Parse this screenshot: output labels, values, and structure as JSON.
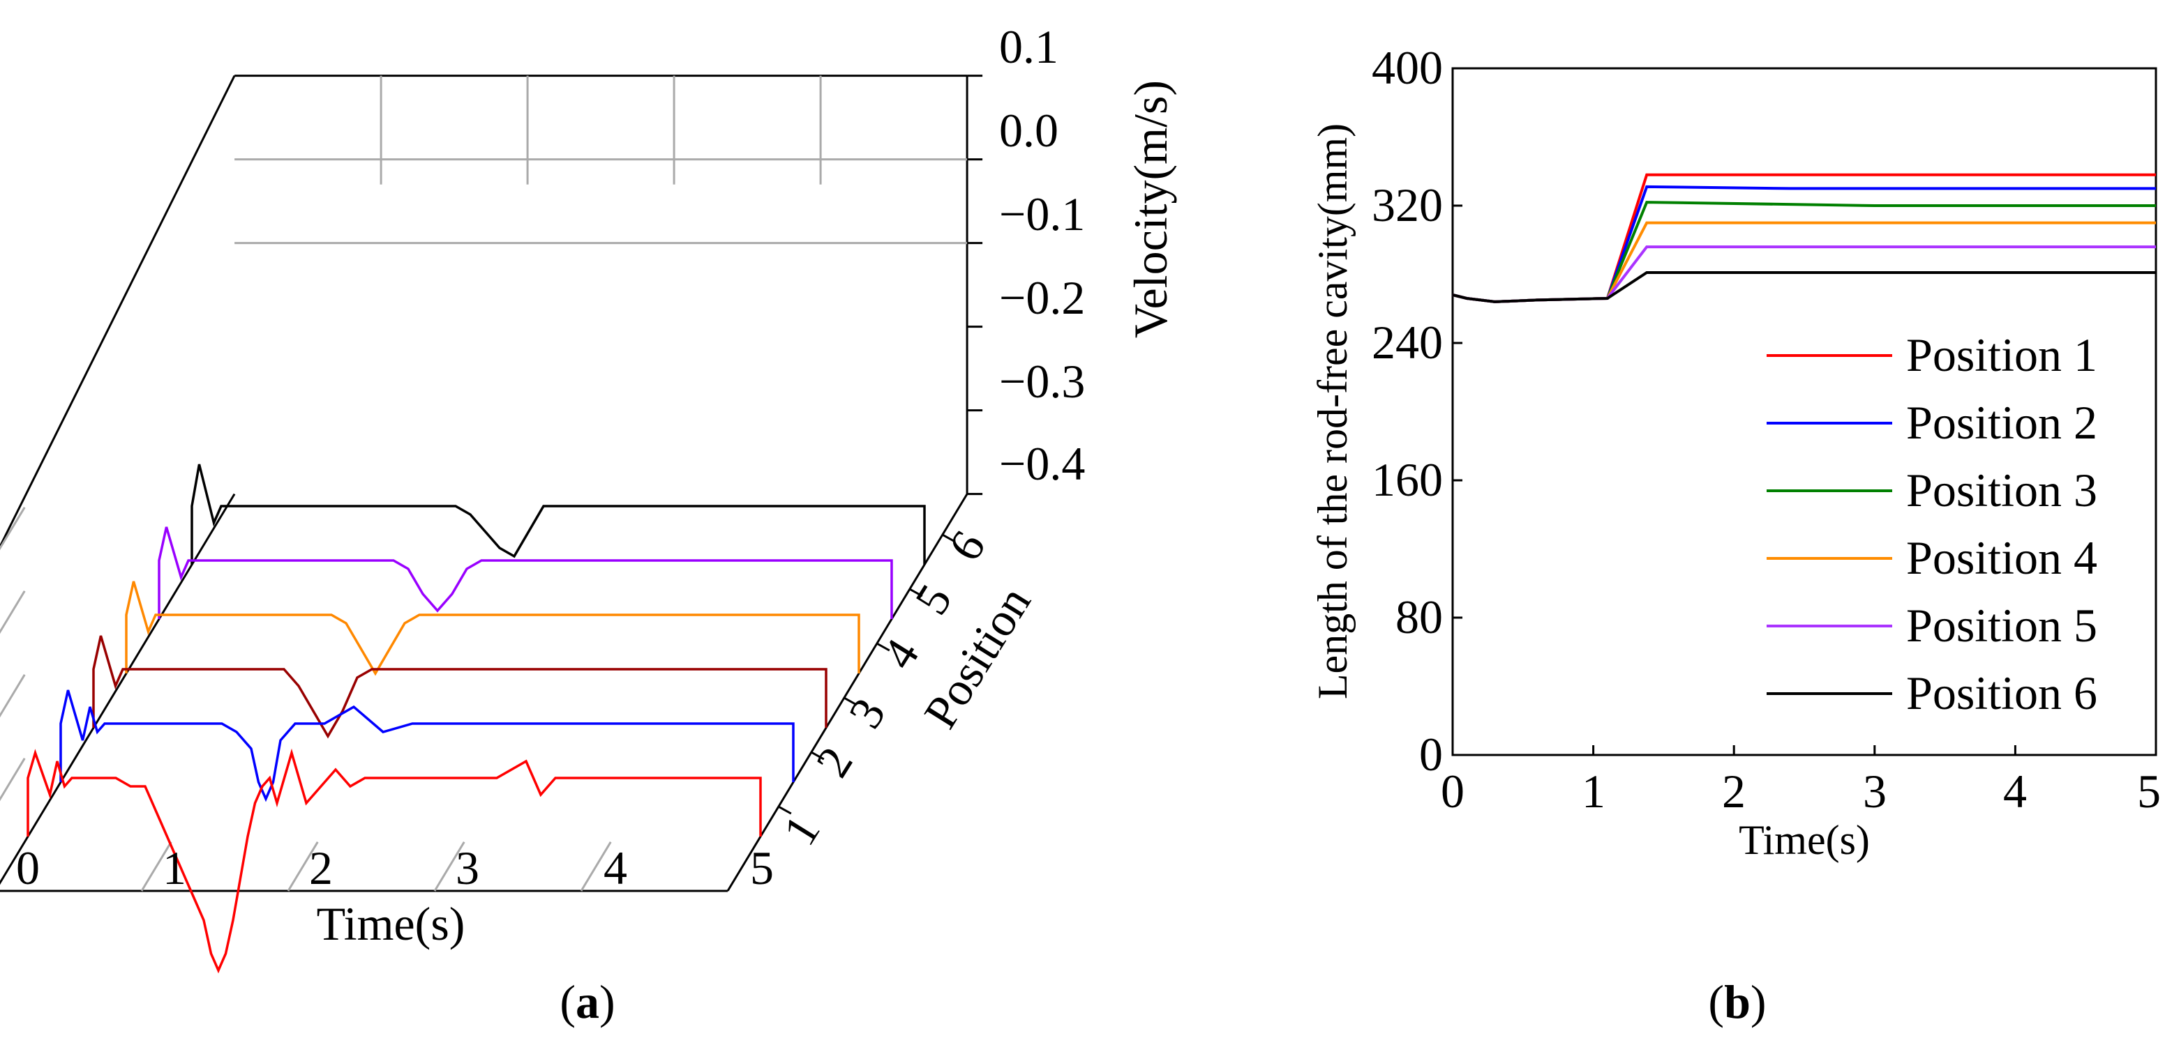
{
  "chart_data": [
    {
      "type": "line",
      "panel_label": "(a)",
      "panel_letter": "a",
      "title": "",
      "projection": "3d-waterfall",
      "xlabel": "Time(s)",
      "ylabel": "Position",
      "zlabel": "Velocity(m/s)",
      "xlim": [
        0,
        5
      ],
      "zlim": [
        -0.4,
        0.1
      ],
      "x_ticks": [
        "0",
        "1",
        "2",
        "3",
        "4",
        "5"
      ],
      "y_ticks": [
        "1",
        "2",
        "3",
        "4",
        "5",
        "6"
      ],
      "z_ticks": [
        "0.1",
        "0.0",
        "−0.1",
        "−0.2",
        "−0.3",
        "−0.4"
      ],
      "series": [
        {
          "name": "Position 1",
          "position": 1,
          "color": "#ff0000",
          "steady_value": -0.33,
          "t": [
            0,
            0.05,
            0.15,
            0.2,
            0.25,
            0.3,
            0.4,
            0.5,
            0.6,
            0.7,
            0.8,
            0.9,
            1.0,
            1.1,
            1.2,
            1.25,
            1.3,
            1.35,
            1.4,
            1.45,
            1.5,
            1.55,
            1.6,
            1.65,
            1.7,
            1.8,
            1.9,
            2.0,
            2.1,
            2.2,
            2.3,
            2.4,
            2.5,
            2.6,
            2.7,
            2.8,
            3.0,
            3.2,
            3.4,
            3.5,
            3.6,
            3.7,
            3.8,
            4.0,
            4.2,
            4.4,
            4.6,
            4.8,
            5.0
          ],
          "v": [
            -0.33,
            -0.3,
            -0.35,
            -0.31,
            -0.34,
            -0.33,
            -0.33,
            -0.33,
            -0.33,
            -0.34,
            -0.34,
            -0.38,
            -0.42,
            -0.46,
            -0.5,
            -0.54,
            -0.56,
            -0.54,
            -0.5,
            -0.45,
            -0.4,
            -0.36,
            -0.34,
            -0.33,
            -0.36,
            -0.3,
            -0.36,
            -0.34,
            -0.32,
            -0.34,
            -0.33,
            -0.33,
            -0.33,
            -0.33,
            -0.33,
            -0.33,
            -0.33,
            -0.33,
            -0.31,
            -0.35,
            -0.33,
            -0.33,
            -0.33,
            -0.33,
            -0.33,
            -0.33,
            -0.33,
            -0.33,
            -0.33
          ]
        },
        {
          "name": "Position 2",
          "position": 2,
          "color": "#0000ff",
          "steady_value": -0.33,
          "t": [
            0,
            0.05,
            0.15,
            0.2,
            0.25,
            0.3,
            0.4,
            0.6,
            0.8,
            1.0,
            1.1,
            1.2,
            1.3,
            1.35,
            1.4,
            1.45,
            1.5,
            1.6,
            1.8,
            2.0,
            2.2,
            2.4,
            2.6,
            2.8,
            3.0,
            3.2,
            3.4,
            3.6,
            3.8,
            4.0,
            4.2,
            4.4,
            4.6,
            4.8,
            5.0
          ],
          "v": [
            -0.33,
            -0.29,
            -0.35,
            -0.31,
            -0.34,
            -0.33,
            -0.33,
            -0.33,
            -0.33,
            -0.33,
            -0.33,
            -0.34,
            -0.36,
            -0.4,
            -0.42,
            -0.4,
            -0.35,
            -0.33,
            -0.33,
            -0.31,
            -0.34,
            -0.33,
            -0.33,
            -0.33,
            -0.33,
            -0.33,
            -0.33,
            -0.33,
            -0.33,
            -0.33,
            -0.33,
            -0.33,
            -0.33,
            -0.33,
            -0.33
          ]
        },
        {
          "name": "Position 3",
          "position": 3,
          "color": "#990000",
          "steady_value": -0.33,
          "t": [
            0,
            0.05,
            0.15,
            0.2,
            0.3,
            0.4,
            0.6,
            0.8,
            1.0,
            1.2,
            1.3,
            1.4,
            1.5,
            1.6,
            1.7,
            1.8,
            1.9,
            2.0,
            2.2,
            2.4,
            2.6,
            2.8,
            3.0,
            3.2,
            3.4,
            3.6,
            3.8,
            4.0,
            4.2,
            4.4,
            4.6,
            4.8,
            5.0
          ],
          "v": [
            -0.33,
            -0.29,
            -0.35,
            -0.33,
            -0.33,
            -0.33,
            -0.33,
            -0.33,
            -0.33,
            -0.33,
            -0.33,
            -0.35,
            -0.38,
            -0.41,
            -0.38,
            -0.34,
            -0.33,
            -0.33,
            -0.33,
            -0.33,
            -0.33,
            -0.33,
            -0.33,
            -0.33,
            -0.33,
            -0.33,
            -0.33,
            -0.33,
            -0.33,
            -0.33,
            -0.33,
            -0.33,
            -0.33
          ]
        },
        {
          "name": "Position 4",
          "position": 4,
          "color": "#ff8800",
          "steady_value": -0.33,
          "t": [
            0,
            0.05,
            0.15,
            0.2,
            0.3,
            0.4,
            0.6,
            0.8,
            1.0,
            1.2,
            1.4,
            1.5,
            1.6,
            1.7,
            1.8,
            1.9,
            2.0,
            2.1,
            2.2,
            2.4,
            2.6,
            2.8,
            3.0,
            3.2,
            3.4,
            3.6,
            3.8,
            4.0,
            4.2,
            4.4,
            4.6,
            4.8,
            5.0
          ],
          "v": [
            -0.33,
            -0.29,
            -0.35,
            -0.33,
            -0.33,
            -0.33,
            -0.33,
            -0.33,
            -0.33,
            -0.33,
            -0.33,
            -0.34,
            -0.37,
            -0.4,
            -0.37,
            -0.34,
            -0.33,
            -0.33,
            -0.33,
            -0.33,
            -0.33,
            -0.33,
            -0.33,
            -0.33,
            -0.33,
            -0.33,
            -0.33,
            -0.33,
            -0.33,
            -0.33,
            -0.33,
            -0.33,
            -0.33
          ]
        },
        {
          "name": "Position 5",
          "position": 5,
          "color": "#9900ff",
          "steady_value": -0.33,
          "t": [
            0,
            0.05,
            0.15,
            0.2,
            0.3,
            0.4,
            0.6,
            0.8,
            1.0,
            1.2,
            1.4,
            1.6,
            1.7,
            1.8,
            1.9,
            2.0,
            2.1,
            2.2,
            2.3,
            2.4,
            2.6,
            2.8,
            3.0,
            3.2,
            3.4,
            3.6,
            3.8,
            4.0,
            4.2,
            4.4,
            4.6,
            4.8,
            5.0
          ],
          "v": [
            -0.33,
            -0.29,
            -0.35,
            -0.33,
            -0.33,
            -0.33,
            -0.33,
            -0.33,
            -0.33,
            -0.33,
            -0.33,
            -0.33,
            -0.34,
            -0.37,
            -0.39,
            -0.37,
            -0.34,
            -0.33,
            -0.33,
            -0.33,
            -0.33,
            -0.33,
            -0.33,
            -0.33,
            -0.33,
            -0.33,
            -0.33,
            -0.33,
            -0.33,
            -0.33,
            -0.33,
            -0.33,
            -0.33
          ]
        },
        {
          "name": "Position 6",
          "position": 6,
          "color": "#000000",
          "steady_value": -0.33,
          "t": [
            0,
            0.05,
            0.15,
            0.2,
            0.3,
            0.4,
            0.6,
            0.8,
            1.0,
            1.2,
            1.4,
            1.6,
            1.8,
            1.9,
            2.0,
            2.1,
            2.2,
            2.3,
            2.4,
            2.5,
            2.6,
            2.8,
            3.0,
            3.2,
            3.4,
            3.6,
            3.8,
            4.0,
            4.2,
            4.4,
            4.6,
            4.8,
            5.0
          ],
          "v": [
            -0.33,
            -0.28,
            -0.35,
            -0.33,
            -0.33,
            -0.33,
            -0.33,
            -0.33,
            -0.33,
            -0.33,
            -0.33,
            -0.33,
            -0.33,
            -0.34,
            -0.36,
            -0.38,
            -0.39,
            -0.36,
            -0.33,
            -0.33,
            -0.33,
            -0.33,
            -0.33,
            -0.33,
            -0.33,
            -0.33,
            -0.33,
            -0.33,
            -0.33,
            -0.33,
            -0.33,
            -0.33,
            -0.33
          ]
        }
      ]
    },
    {
      "type": "line",
      "panel_label": "(b)",
      "panel_letter": "b",
      "title": "",
      "xlabel": "Time(s)",
      "ylabel": "Length of the rod-free cavity(mm)",
      "xlim": [
        0,
        5
      ],
      "ylim": [
        0,
        400
      ],
      "x_ticks": [
        "0",
        "1",
        "2",
        "3",
        "4",
        "5"
      ],
      "y_ticks": [
        "0",
        "80",
        "160",
        "240",
        "320",
        "400"
      ],
      "legend_position": "bottom-right",
      "series": [
        {
          "name": "Position 1",
          "color": "#ff0000",
          "x": [
            0,
            0.1,
            0.3,
            0.6,
            1.1,
            1.38,
            5
          ],
          "y": [
            268,
            266,
            264,
            265,
            266,
            338,
            338
          ]
        },
        {
          "name": "Position 2",
          "color": "#0000ff",
          "x": [
            0,
            0.1,
            0.3,
            0.6,
            1.1,
            1.38,
            2.4,
            5
          ],
          "y": [
            268,
            266,
            264,
            265,
            266,
            331,
            330,
            330
          ]
        },
        {
          "name": "Position 3",
          "color": "#008000",
          "x": [
            0,
            0.1,
            0.3,
            0.6,
            1.1,
            1.38,
            3.0,
            5
          ],
          "y": [
            268,
            266,
            264,
            265,
            266,
            322,
            320,
            320
          ]
        },
        {
          "name": "Position 4",
          "color": "#ff8c00",
          "x": [
            0,
            0.1,
            0.3,
            0.6,
            1.1,
            1.38,
            5
          ],
          "y": [
            268,
            266,
            264,
            265,
            266,
            310,
            310
          ]
        },
        {
          "name": "Position 5",
          "color": "#aa33ff",
          "x": [
            0,
            0.1,
            0.3,
            0.6,
            1.1,
            1.38,
            5
          ],
          "y": [
            268,
            266,
            264,
            265,
            266,
            296,
            296
          ]
        },
        {
          "name": "Position 6",
          "color": "#000000",
          "x": [
            0,
            0.1,
            0.3,
            0.6,
            1.1,
            1.38,
            5
          ],
          "y": [
            268,
            266,
            264,
            265,
            266,
            281,
            281
          ]
        }
      ]
    }
  ]
}
